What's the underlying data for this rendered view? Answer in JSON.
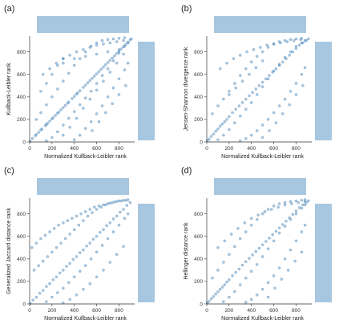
{
  "figure": {
    "marginal_color": "#a7c6df",
    "point_color": "#4a86b8",
    "tick_values": [
      0,
      200,
      400,
      600,
      800
    ]
  },
  "chart_data": [
    {
      "type": "scatter",
      "panel": "(a)",
      "xlabel": "Normalized Kullback-Leibler rank",
      "ylabel": "Kullback-Leibler rank",
      "xlim": [
        0,
        940
      ],
      "ylim": [
        0,
        940
      ],
      "xticks": [
        0,
        200,
        400,
        600,
        800
      ],
      "yticks": [
        0,
        200,
        400,
        600,
        800
      ],
      "marginal_histograms": "top and right",
      "x": [
        5,
        25,
        50,
        60,
        80,
        100,
        110,
        140,
        150,
        160,
        180,
        200,
        210,
        230,
        250,
        260,
        280,
        300,
        320,
        340,
        350,
        380,
        400,
        420,
        430,
        450,
        480,
        500,
        520,
        540,
        560,
        580,
        600,
        620,
        640,
        660,
        680,
        700,
        720,
        740,
        760,
        780,
        800,
        820,
        840,
        860,
        880,
        900,
        910,
        60,
        100,
        150,
        200,
        250,
        300,
        350,
        400,
        450,
        500,
        550,
        600,
        650,
        700,
        750,
        800,
        850,
        150,
        200,
        250,
        300,
        350,
        400,
        450,
        500,
        550,
        600,
        650,
        700,
        750,
        800,
        850,
        880,
        400,
        450,
        500,
        550,
        600,
        650,
        700,
        750,
        800,
        850,
        880,
        100,
        150,
        200,
        250,
        300,
        120,
        180,
        240,
        300,
        360,
        420,
        480,
        540,
        600,
        660,
        720,
        780,
        840,
        300,
        360,
        420,
        480,
        540,
        600,
        660,
        720,
        780,
        840,
        300,
        400,
        500,
        600,
        700,
        800,
        560,
        620,
        680,
        740,
        800,
        860
      ],
      "y": [
        5,
        30,
        55,
        65,
        85,
        105,
        115,
        145,
        155,
        165,
        185,
        205,
        215,
        235,
        255,
        265,
        285,
        305,
        325,
        345,
        355,
        385,
        405,
        425,
        435,
        455,
        485,
        505,
        525,
        545,
        565,
        585,
        605,
        625,
        645,
        665,
        685,
        705,
        725,
        745,
        765,
        785,
        805,
        825,
        845,
        865,
        885,
        905,
        915,
        200,
        260,
        330,
        400,
        470,
        540,
        610,
        680,
        740,
        800,
        850,
        880,
        900,
        910,
        915,
        920,
        925,
        10,
        40,
        90,
        150,
        210,
        270,
        330,
        390,
        450,
        520,
        590,
        650,
        720,
        790,
        850,
        880,
        20,
        60,
        120,
        180,
        250,
        320,
        400,
        480,
        560,
        640,
        700,
        450,
        520,
        600,
        680,
        740,
        600,
        650,
        700,
        740,
        770,
        800,
        820,
        840,
        860,
        870,
        880,
        890,
        900,
        60,
        130,
        210,
        300,
        380,
        460,
        540,
        620,
        700,
        780,
        700,
        740,
        760,
        780,
        800,
        820,
        100,
        180,
        260,
        340,
        420,
        500
      ]
    },
    {
      "type": "scatter",
      "panel": "(b)",
      "xlabel": "Normalized Kullback-Leibler rank",
      "ylabel": "Jensen-Shannon divergence rank",
      "xlim": [
        0,
        940
      ],
      "ylim": [
        0,
        940
      ],
      "xticks": [
        0,
        200,
        400,
        600,
        800
      ],
      "yticks": [
        0,
        200,
        400,
        600,
        800
      ],
      "marginal_histograms": "top and right",
      "x": [
        5,
        20,
        40,
        60,
        80,
        100,
        120,
        140,
        160,
        180,
        200,
        230,
        260,
        290,
        320,
        350,
        380,
        410,
        440,
        470,
        500,
        530,
        560,
        590,
        620,
        650,
        680,
        710,
        740,
        770,
        800,
        830,
        860,
        890,
        910,
        50,
        100,
        150,
        200,
        250,
        300,
        350,
        400,
        450,
        500,
        550,
        600,
        650,
        700,
        750,
        800,
        850,
        100,
        150,
        200,
        250,
        300,
        350,
        400,
        450,
        500,
        550,
        600,
        650,
        700,
        750,
        800,
        850,
        880,
        300,
        350,
        400,
        450,
        500,
        550,
        600,
        650,
        700,
        750,
        800,
        850,
        880,
        120,
        180,
        240,
        300,
        360,
        420,
        480,
        540,
        600,
        660,
        720,
        780,
        840,
        500,
        560,
        620,
        680,
        740,
        800,
        860,
        200,
        260,
        320,
        380,
        440,
        500
      ],
      "y": [
        10,
        25,
        50,
        70,
        95,
        115,
        140,
        160,
        180,
        200,
        225,
        260,
        290,
        320,
        350,
        380,
        410,
        440,
        470,
        500,
        530,
        560,
        590,
        620,
        650,
        680,
        710,
        740,
        770,
        800,
        830,
        860,
        880,
        900,
        915,
        250,
        320,
        380,
        450,
        520,
        590,
        650,
        710,
        760,
        800,
        840,
        870,
        890,
        900,
        910,
        915,
        920,
        20,
        60,
        110,
        170,
        230,
        290,
        350,
        420,
        490,
        560,
        630,
        690,
        750,
        800,
        850,
        880,
        900,
        10,
        30,
        60,
        100,
        150,
        200,
        260,
        320,
        380,
        450,
        520,
        600,
        660,
        650,
        700,
        740,
        770,
        800,
        820,
        840,
        860,
        870,
        880,
        890,
        900,
        910,
        40,
        100,
        170,
        250,
        330,
        420,
        500,
        420,
        480,
        540,
        600,
        660,
        720
      ]
    },
    {
      "type": "scatter",
      "panel": "(c)",
      "xlabel": "Normalized Kullback-Leibler rank",
      "ylabel": "Generalized Jaccard distance rank",
      "xlim": [
        0,
        940
      ],
      "ylim": [
        0,
        940
      ],
      "xticks": [
        0,
        200,
        400,
        600,
        800
      ],
      "yticks": [
        0,
        200,
        400,
        600,
        800
      ],
      "marginal_histograms": "top and right",
      "x": [
        5,
        30,
        60,
        90,
        120,
        150,
        180,
        210,
        240,
        270,
        300,
        330,
        360,
        390,
        420,
        450,
        480,
        510,
        540,
        570,
        600,
        630,
        660,
        690,
        720,
        750,
        780,
        810,
        840,
        870,
        900,
        40,
        80,
        120,
        160,
        200,
        240,
        280,
        320,
        360,
        400,
        440,
        480,
        520,
        560,
        600,
        640,
        680,
        720,
        760,
        800,
        840,
        880,
        150,
        200,
        250,
        300,
        350,
        400,
        450,
        500,
        550,
        600,
        650,
        700,
        750,
        800,
        850,
        880,
        20,
        60,
        100,
        140,
        180,
        220,
        260,
        300,
        340,
        380,
        420,
        460,
        500,
        540,
        580,
        620,
        660,
        700,
        740,
        780,
        820,
        860,
        300,
        360,
        420,
        480,
        540,
        600,
        660,
        720,
        780,
        840
      ],
      "y": [
        5,
        35,
        60,
        95,
        120,
        155,
        180,
        215,
        240,
        275,
        300,
        335,
        360,
        395,
        420,
        455,
        480,
        515,
        540,
        575,
        600,
        635,
        660,
        695,
        720,
        755,
        780,
        815,
        840,
        875,
        900,
        300,
        340,
        380,
        420,
        460,
        500,
        540,
        580,
        620,
        660,
        700,
        740,
        780,
        810,
        840,
        860,
        880,
        895,
        905,
        915,
        920,
        925,
        20,
        60,
        100,
        140,
        190,
        240,
        290,
        340,
        400,
        460,
        520,
        580,
        640,
        700,
        760,
        800,
        500,
        540,
        580,
        610,
        640,
        670,
        700,
        720,
        740,
        760,
        780,
        800,
        820,
        840,
        860,
        870,
        880,
        890,
        900,
        910,
        915,
        920,
        10,
        40,
        80,
        130,
        180,
        240,
        300,
        370,
        440,
        510
      ]
    },
    {
      "type": "scatter",
      "panel": "(d)",
      "xlabel": "Normalized Kullback-Leibler rank",
      "ylabel": "Hellinger distance rank",
      "xlim": [
        0,
        940
      ],
      "ylim": [
        0,
        940
      ],
      "xticks": [
        0,
        200,
        400,
        600,
        800
      ],
      "yticks": [
        0,
        200,
        400,
        600,
        800
      ],
      "marginal_histograms": "top and right",
      "x": [
        5,
        20,
        40,
        60,
        80,
        100,
        120,
        140,
        160,
        180,
        200,
        230,
        260,
        290,
        320,
        350,
        380,
        410,
        440,
        470,
        500,
        530,
        560,
        590,
        620,
        650,
        680,
        710,
        740,
        770,
        800,
        830,
        860,
        890,
        910,
        50,
        100,
        150,
        200,
        250,
        300,
        350,
        400,
        450,
        500,
        550,
        600,
        650,
        700,
        750,
        800,
        850,
        880,
        150,
        200,
        250,
        300,
        350,
        400,
        450,
        500,
        550,
        600,
        650,
        700,
        750,
        800,
        850,
        880,
        350,
        400,
        450,
        500,
        550,
        600,
        650,
        700,
        750,
        800,
        850,
        880,
        100,
        160,
        220,
        280,
        340,
        400,
        460,
        520,
        580,
        640,
        700,
        760,
        820,
        880,
        550,
        610,
        670,
        730,
        790,
        850
      ],
      "y": [
        8,
        22,
        45,
        65,
        88,
        108,
        130,
        150,
        170,
        195,
        215,
        250,
        280,
        310,
        345,
        375,
        405,
        435,
        465,
        495,
        525,
        555,
        585,
        615,
        645,
        675,
        705,
        735,
        765,
        795,
        825,
        855,
        880,
        900,
        915,
        230,
        300,
        370,
        440,
        510,
        580,
        640,
        700,
        750,
        800,
        840,
        870,
        890,
        900,
        910,
        915,
        920,
        925,
        20,
        60,
        110,
        170,
        230,
        290,
        350,
        420,
        490,
        560,
        630,
        690,
        750,
        800,
        850,
        880,
        15,
        40,
        80,
        130,
        190,
        250,
        320,
        400,
        480,
        560,
        640,
        700,
        500,
        560,
        620,
        670,
        720,
        760,
        790,
        820,
        840,
        860,
        880,
        890,
        900,
        910,
        60,
        140,
        220,
        300,
        380,
        460
      ]
    }
  ]
}
